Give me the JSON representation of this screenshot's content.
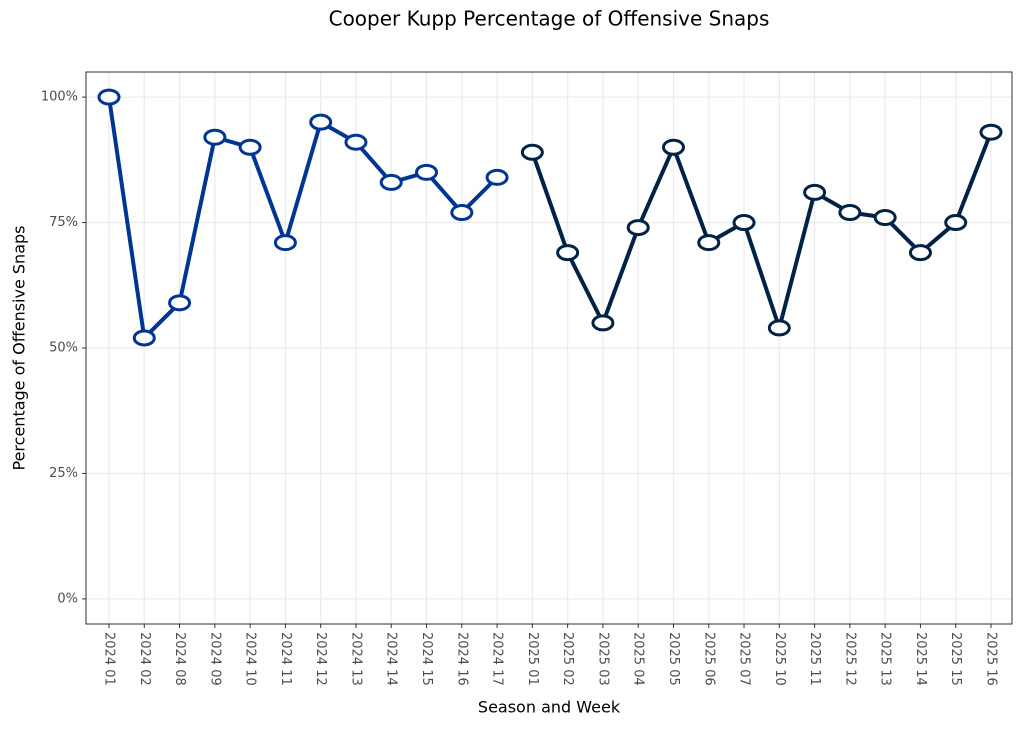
{
  "chart_data": {
    "type": "line",
    "title": "Cooper Kupp Percentage of Offensive Snaps",
    "x_label": "Season and Week",
    "y_label": "Percentage of Offensive Snaps",
    "categories": [
      "2024 01",
      "2024 02",
      "2024 08",
      "2024 09",
      "2024 10",
      "2024 11",
      "2024 12",
      "2024 13",
      "2024 14",
      "2024 15",
      "2024 16",
      "2024 17",
      "2025 01",
      "2025 02",
      "2025 03",
      "2025 04",
      "2025 05",
      "2025 06",
      "2025 07",
      "2025 10",
      "2025 11",
      "2025 12",
      "2025 13",
      "2025 14",
      "2025 15",
      "2025 16"
    ],
    "series": [
      {
        "color": "#003594",
        "values": [
          100,
          52,
          59,
          92,
          90,
          71,
          95,
          91,
          83,
          85,
          77,
          84,
          null,
          null,
          null,
          null,
          null,
          null,
          null,
          null,
          null,
          null,
          null,
          null,
          null,
          null
        ]
      },
      {
        "color": "#002244",
        "values": [
          null,
          null,
          null,
          null,
          null,
          null,
          null,
          null,
          null,
          null,
          null,
          null,
          89,
          69,
          55,
          74,
          90,
          71,
          75,
          54,
          81,
          77,
          76,
          69,
          75,
          93
        ]
      }
    ],
    "ylim": [
      -5,
      105
    ],
    "yticks": [
      {
        "value": 0,
        "label": "0%"
      },
      {
        "value": 25,
        "label": "25%"
      },
      {
        "value": 50,
        "label": "50%"
      },
      {
        "value": 75,
        "label": "75%"
      },
      {
        "value": 100,
        "label": "100%"
      }
    ],
    "grid": true
  }
}
